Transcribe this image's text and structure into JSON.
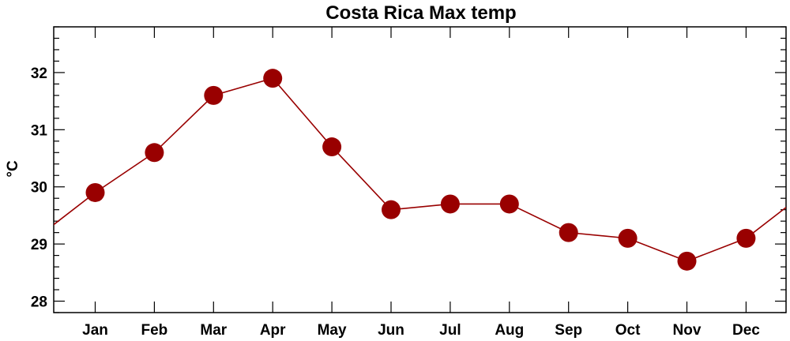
{
  "chart_data": {
    "type": "line",
    "title": "Costa Rica Max temp",
    "xlabel": "",
    "ylabel": "°C",
    "categories": [
      "Jan",
      "Feb",
      "Mar",
      "Apr",
      "May",
      "Jun",
      "Jul",
      "Aug",
      "Sep",
      "Oct",
      "Nov",
      "Dec"
    ],
    "series": [
      {
        "values": [
          29.9,
          30.6,
          31.6,
          31.9,
          30.7,
          29.6,
          29.7,
          29.7,
          29.2,
          29.1,
          28.7,
          29.1
        ]
      }
    ],
    "ylim": [
      27.8,
      32.8
    ],
    "yticks": [
      28,
      29,
      30,
      31,
      32
    ],
    "ytick_labels": [
      "28",
      "29",
      "30",
      "31",
      "32"
    ],
    "line_wraps_around_year": true,
    "grid": false,
    "legend": "none",
    "marker": "filled-circle",
    "colors": {
      "series": "#990000",
      "axes": "#000000",
      "background": "#ffffff"
    }
  }
}
